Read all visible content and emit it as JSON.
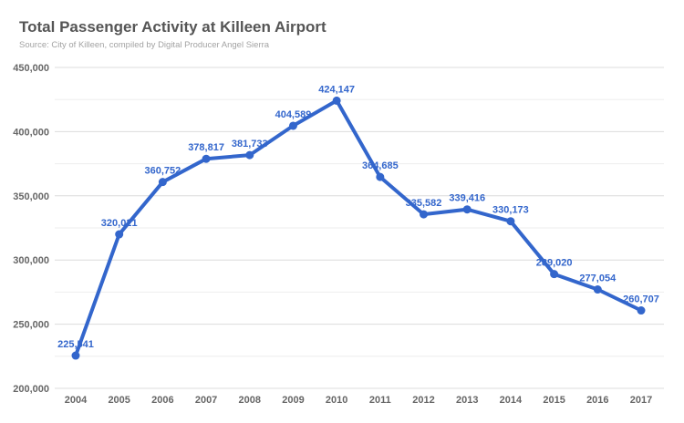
{
  "chart_data": {
    "type": "line",
    "title": "Total Passenger Activity at Killeen Airport",
    "subtitle": "Source: City of Killeen, compiled by Digital Producer Angel Sierra",
    "xlabel": "",
    "ylabel": "",
    "categories": [
      "2004",
      "2005",
      "2006",
      "2007",
      "2008",
      "2009",
      "2010",
      "2011",
      "2012",
      "2013",
      "2014",
      "2015",
      "2016",
      "2017"
    ],
    "series": [
      {
        "values": [
          225541,
          320021,
          360752,
          378817,
          381733,
          404589,
          424147,
          364685,
          335582,
          339416,
          330173,
          289020,
          277054,
          260707
        ],
        "labels": [
          "225,541",
          "320,021",
          "360,752",
          "378,817",
          "381,733",
          "404,589",
          "424,147",
          "364,685",
          "335,582",
          "339,416",
          "330,173",
          "289,020",
          "277,054",
          "260,707"
        ]
      }
    ],
    "ylim": [
      200000,
      450000
    ],
    "yticks": [
      200000,
      250000,
      300000,
      350000,
      400000,
      450000
    ],
    "ytick_labels": [
      "200,000",
      "250,000",
      "300,000",
      "350,000",
      "400,000",
      "450,000"
    ],
    "grid": true,
    "legend": "none",
    "colors": {
      "line": "#3366cc",
      "label": "#3366cc",
      "grid": "#dcdcdc",
      "minor_grid": "#eeeeee"
    }
  }
}
